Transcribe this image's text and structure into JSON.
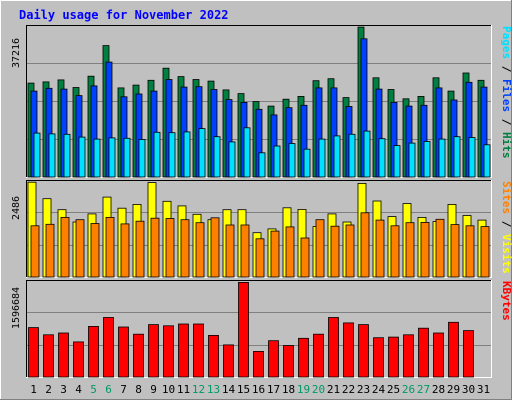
{
  "chart_data": {
    "type": "bar",
    "title": "Daily usage for November 2022",
    "x": [
      "1",
      "2",
      "3",
      "4",
      "5",
      "6",
      "7",
      "8",
      "9",
      "10",
      "11",
      "12",
      "13",
      "14",
      "15",
      "16",
      "17",
      "18",
      "19",
      "20",
      "21",
      "22",
      "23",
      "24",
      "25",
      "26",
      "27",
      "28",
      "29",
      "30",
      "31"
    ],
    "weekend_days": [
      "5",
      "6",
      "12",
      "13",
      "19",
      "20",
      "26",
      "27"
    ],
    "colors": {
      "background": "#c0c0c0",
      "plot_background": "#c0c0c0",
      "grid": "#808080",
      "title": "#0000ff",
      "axis_text": "#000000",
      "weekend_text": "#009966",
      "hits": "#008040",
      "files": "#0040ff",
      "pages": "#00e0ff",
      "visits": "#ffff00",
      "sites": "#ff8000",
      "kbytes": "#ff0000"
    },
    "panels": [
      {
        "id": "hits_files_pages",
        "ymax": 37216,
        "ymax_label": "37216",
        "legend": [
          {
            "text": "Pages",
            "color": "#00e0ff"
          },
          {
            "text": " / ",
            "color": "#000000"
          },
          {
            "text": "Files",
            "color": "#0040ff"
          },
          {
            "text": " / ",
            "color": "#000000"
          },
          {
            "text": "Hits",
            "color": "#008040"
          }
        ],
        "series": [
          {
            "name": "Hits",
            "color": "#008040",
            "values": [
              23300,
              23600,
              24100,
              22200,
              25000,
              32600,
              22100,
              22800,
              24000,
              27000,
              24900,
              24200,
              23800,
              21600,
              20700,
              18700,
              17600,
              19300,
              20000,
              23900,
              24400,
              19700,
              37200,
              24600,
              21700,
              19400,
              20000,
              24600,
              21300,
              25800,
              24000
            ]
          },
          {
            "name": "Files",
            "color": "#0040ff",
            "values": [
              21300,
              22000,
              21800,
              20200,
              22600,
              28500,
              19900,
              20600,
              21300,
              24200,
              22300,
              22400,
              21700,
              19200,
              18500,
              16800,
              15400,
              17200,
              17800,
              22100,
              22100,
              17500,
              34300,
              21800,
              18500,
              17600,
              17800,
              22100,
              19100,
              23500,
              22300
            ]
          },
          {
            "name": "Pages",
            "color": "#00e0ff",
            "values": [
              10900,
              10700,
              10600,
              9900,
              9400,
              9700,
              9600,
              9300,
              11100,
              11000,
              11200,
              12000,
              10000,
              8700,
              12200,
              6000,
              7700,
              8300,
              6900,
              9400,
              10200,
              10600,
              11400,
              9500,
              7800,
              8400,
              8800,
              9400,
              10000,
              9800,
              8000
            ]
          }
        ]
      },
      {
        "id": "visits_sites",
        "ymax": 2486,
        "ymax_label": "2486",
        "legend": [
          {
            "text": "Sites",
            "color": "#ff8000"
          },
          {
            "text": " / ",
            "color": "#000000"
          },
          {
            "text": "Visits",
            "color": "#ffff00"
          }
        ],
        "series": [
          {
            "name": "Visits",
            "color": "#ffff00",
            "values": [
              2480,
              2050,
              1760,
              1440,
              1650,
              2090,
              1800,
              1900,
              2470,
              1980,
              1860,
              1640,
              1500,
              1760,
              1760,
              1160,
              1260,
              1810,
              1770,
              1320,
              1650,
              1440,
              2450,
              1990,
              1580,
              1920,
              1560,
              1450,
              1900,
              1610,
              1490
            ]
          },
          {
            "name": "Sites",
            "color": "#ff8000",
            "values": [
              1340,
              1380,
              1560,
              1500,
              1400,
              1560,
              1390,
              1460,
              1540,
              1530,
              1500,
              1420,
              1550,
              1360,
              1360,
              1000,
              1200,
              1310,
              1020,
              1500,
              1330,
              1360,
              1680,
              1490,
              1340,
              1420,
              1430,
              1510,
              1370,
              1340,
              1320
            ]
          }
        ]
      },
      {
        "id": "kbytes",
        "ymax": 1596684,
        "ymax_label": "1596684",
        "legend": [
          {
            "text": "KBytes",
            "color": "#ff0000"
          }
        ],
        "series": [
          {
            "name": "KBytes",
            "color": "#ff0000",
            "values": [
              830000,
              710000,
              740000,
              590000,
              850000,
              1000000,
              840000,
              720000,
              880000,
              860000,
              890000,
              890000,
              700000,
              540000,
              1590000,
              430000,
              610000,
              530000,
              650000,
              720000,
              1000000,
              910000,
              880000,
              660000,
              670000,
              710000,
              820000,
              740000,
              920000,
              780000,
              0
            ]
          }
        ]
      }
    ]
  }
}
